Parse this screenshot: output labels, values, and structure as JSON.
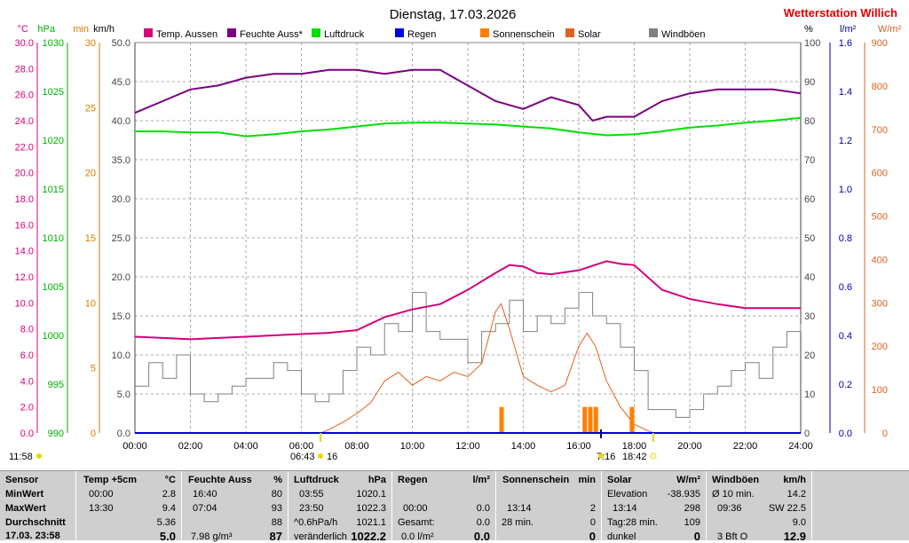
{
  "title": "Dienstag, 17.03.2026",
  "station": "Wetterstation Willich",
  "colors": {
    "temp": "#d4007c",
    "humidity": "#7a0080",
    "pressure": "#00e000",
    "rain": "#0000e0",
    "sunshine": "#ff8000",
    "solar": "#e06020",
    "gust": "#808080",
    "left_temp_axis": "#d4007c",
    "left_hpa_axis": "#00b000",
    "left_min_axis": "#d08000",
    "right_lm2_axis": "#0000a0",
    "right_wm2_axis": "#e06020",
    "station": "#e00000"
  },
  "legend": [
    {
      "label": "Temp. Aussen",
      "color": "#d4007c"
    },
    {
      "label": "Feuchte Auss*",
      "color": "#7a0080"
    },
    {
      "label": "Luftdruck",
      "color": "#00e000"
    },
    {
      "label": "Regen",
      "color": "#0000e0"
    },
    {
      "label": "Sonnenschein",
      "color": "#ff8000"
    },
    {
      "label": "Solar",
      "color": "#e06020"
    },
    {
      "label": "Windböen",
      "color": "#808080"
    }
  ],
  "axes": {
    "units_left": [
      "°C",
      "hPa",
      "min",
      "km/h"
    ],
    "units_right": [
      "%",
      "l/m²",
      "W/m²"
    ],
    "temp_ticks": [
      "30.0",
      "28.0",
      "26.0",
      "24.0",
      "22.0",
      "20.0",
      "18.0",
      "16.0",
      "14.0",
      "12.0",
      "10.0",
      "8.0",
      "6.0",
      "4.0",
      "2.0",
      "0.0"
    ],
    "hpa_ticks": [
      "1030",
      "1025",
      "1020",
      "1015",
      "1010",
      "1005",
      "1000",
      "995",
      "990"
    ],
    "min_ticks": [
      "30",
      "25",
      "20",
      "15",
      "10",
      "5",
      "0"
    ],
    "kmh_ticks": [
      "50.0",
      "45.0",
      "40.0",
      "35.0",
      "30.0",
      "25.0",
      "20.0",
      "15.0",
      "10.0",
      "5.0",
      "0.0"
    ],
    "pct_ticks": [
      "100",
      "90",
      "80",
      "70",
      "60",
      "50",
      "40",
      "30",
      "20",
      "10",
      "0"
    ],
    "lm2_ticks": [
      "1.6",
      "1.4",
      "1.2",
      "1.0",
      "0.8",
      "0.6",
      "0.4",
      "0.2",
      "0.0"
    ],
    "wm2_ticks": [
      "900",
      "800",
      "700",
      "600",
      "500",
      "400",
      "300",
      "200",
      "100",
      "0"
    ],
    "time_ticks": [
      "00:00",
      "02:00",
      "04:00",
      "06:00",
      "08:00",
      "10:00",
      "12:00",
      "14:00",
      "16:00",
      "18:00",
      "20:00",
      "22:00",
      "24:00"
    ]
  },
  "markers": {
    "sunrise": "06:43",
    "sunrise_extra": "16",
    "sunset_prefix": "7:16",
    "sunset": "18:42",
    "left_time": "11:58"
  },
  "chart_data": {
    "type": "line",
    "x_unit": "time of day (hours)",
    "xlim": [
      0,
      24
    ],
    "series": [
      {
        "name": "Temp. Aussen",
        "unit": "°C",
        "ylim": [
          0,
          30
        ],
        "x": [
          0,
          1,
          2,
          3,
          4,
          5,
          6,
          7,
          8,
          9,
          10,
          11,
          12,
          13,
          13.5,
          14,
          14.5,
          15,
          16,
          17,
          17.5,
          18,
          19,
          20,
          21,
          22,
          23,
          24
        ],
        "y": [
          7.4,
          7.3,
          7.2,
          7.3,
          7.4,
          7.5,
          7.6,
          7.7,
          7.9,
          8.9,
          9.5,
          9.9,
          11.0,
          12.3,
          12.9,
          12.8,
          12.3,
          12.2,
          12.5,
          13.2,
          13.0,
          12.9,
          11.0,
          10.3,
          9.9,
          9.6,
          9.6,
          9.6
        ]
      },
      {
        "name": "Feuchte Auss*",
        "unit": "%",
        "ylim": [
          0,
          100
        ],
        "x": [
          0,
          1,
          2,
          3,
          4,
          5,
          6,
          7,
          8,
          9,
          10,
          11,
          12,
          13,
          14,
          15,
          16,
          16.5,
          17,
          18,
          19,
          20,
          21,
          22,
          23,
          24
        ],
        "y": [
          82,
          85,
          88,
          89,
          91,
          92,
          92,
          93,
          93,
          92,
          93,
          93,
          89,
          85,
          83,
          86,
          84,
          80,
          81,
          81,
          85,
          87,
          88,
          88,
          88,
          87
        ]
      },
      {
        "name": "Luftdruck",
        "unit": "hPa",
        "ylim": [
          990,
          1030
        ],
        "x": [
          0,
          1,
          2,
          3,
          4,
          5,
          6,
          7,
          8,
          9,
          10,
          11,
          12,
          13,
          14,
          15,
          16,
          17,
          18,
          19,
          20,
          21,
          22,
          23,
          24
        ],
        "y": [
          1020.9,
          1020.9,
          1020.8,
          1020.8,
          1020.4,
          1020.6,
          1020.9,
          1021.1,
          1021.4,
          1021.7,
          1021.8,
          1021.8,
          1021.7,
          1021.6,
          1021.4,
          1021.2,
          1020.8,
          1020.5,
          1020.6,
          1020.9,
          1021.3,
          1021.5,
          1021.8,
          1022.0,
          1022.3
        ]
      },
      {
        "name": "Regen",
        "unit": "l/m²",
        "ylim": [
          0,
          1.6
        ],
        "x": [
          0,
          24
        ],
        "y": [
          0.0,
          0.0
        ]
      },
      {
        "name": "Sonnenschein",
        "unit": "min",
        "ylim": [
          0,
          30
        ],
        "x": [
          13.2,
          16.2,
          16.4,
          16.6,
          17.9
        ],
        "y": [
          2,
          2,
          2,
          2,
          2
        ]
      },
      {
        "name": "Solar",
        "unit": "W/m²",
        "ylim": [
          0,
          900
        ],
        "x": [
          6.7,
          7,
          7.5,
          8,
          8.5,
          9,
          9.5,
          10,
          10.5,
          11,
          11.5,
          12,
          12.5,
          13,
          13.2,
          13.5,
          14,
          14.5,
          15,
          15.5,
          16,
          16.3,
          16.6,
          17,
          17.5,
          18,
          18.5,
          18.7
        ],
        "y": [
          0,
          8,
          25,
          45,
          70,
          120,
          140,
          110,
          130,
          120,
          140,
          130,
          160,
          280,
          298,
          240,
          130,
          110,
          95,
          110,
          200,
          230,
          200,
          120,
          60,
          20,
          5,
          0
        ]
      },
      {
        "name": "Windböen",
        "unit": "km/h",
        "ylim": [
          0,
          50
        ],
        "x": [
          0,
          0.5,
          1,
          1.5,
          2,
          2.5,
          3,
          3.5,
          4,
          4.5,
          5,
          5.5,
          6,
          6.5,
          7,
          7.5,
          8,
          8.5,
          9,
          9.5,
          10,
          10.5,
          11,
          11.5,
          12,
          12.5,
          13,
          13.5,
          14,
          14.5,
          15,
          15.5,
          16,
          16.5,
          17,
          17.5,
          18,
          18.5,
          19,
          19.5,
          20,
          20.5,
          21,
          21.5,
          22,
          22.5,
          23,
          23.5,
          24
        ],
        "y": [
          6,
          9,
          7,
          10,
          5,
          4,
          5,
          6,
          7,
          7,
          9,
          8,
          5,
          4,
          5,
          8,
          11,
          10,
          14,
          13,
          18,
          13,
          12,
          12,
          9,
          13,
          14,
          17,
          13,
          15,
          14,
          16,
          18,
          15,
          14,
          11,
          8,
          3,
          3,
          2,
          3,
          5,
          6,
          8,
          9,
          7,
          11,
          13,
          14
        ]
      }
    ]
  },
  "stats": {
    "sensor": {
      "title": "Sensor",
      "rows": [
        "MinWert",
        "MaxWert",
        "Durchschnitt",
        "17.03. 23:58"
      ]
    },
    "temp": {
      "title": "Temp +5cm",
      "unit": "°C",
      "min_time": "00:00",
      "min": "2.8",
      "max_time": "13:30",
      "max": "9.4",
      "avg": "5.36",
      "cur": "5.0"
    },
    "humidity": {
      "title": "Feuchte Auss",
      "unit": "%",
      "min_time": "16:40",
      "min": "80",
      "max_time": "07:04",
      "max": "93",
      "avg": "88",
      "extra": "7.98 g/m³",
      "cur": "87"
    },
    "pressure": {
      "title": "Luftdruck",
      "unit": "hPa",
      "min_time": "03:55",
      "min": "1020.1",
      "max_time": "23:50",
      "max": "1022.3",
      "avg_label": "^0.6hPa/h",
      "avg": "1021.1",
      "trend": "veränderlich",
      "cur": "1022.2"
    },
    "rain": {
      "title": "Regen",
      "unit": "l/m²",
      "max_time": "00:00",
      "max": "0.0",
      "total_label": "Gesamt:",
      "total": "0.0",
      "rate": "0.0 l/m²",
      "cur": "0.0"
    },
    "sunshine": {
      "title": "Sonnenschein",
      "unit": "min",
      "max_time": "13:14",
      "max": "2",
      "total_label": "28 min.",
      "total": "0",
      "cur": "0"
    },
    "solar": {
      "title": "Solar",
      "unit": "W/m²",
      "elev_label": "Elevation",
      "elev": "-38.935",
      "max_time": "13:14",
      "max": "298",
      "day_label": "Tag:28 min.",
      "day": "109",
      "state": "dunkel",
      "cur": "0"
    },
    "wind": {
      "title": "Windböen",
      "unit": "km/h",
      "avg_label": "Ø 10 min.",
      "avg": "14.2",
      "max_time": "09:36",
      "max": "SW 22.5",
      "mean": "9.0",
      "bft": "3 Bft O",
      "cur": "12.9"
    }
  }
}
